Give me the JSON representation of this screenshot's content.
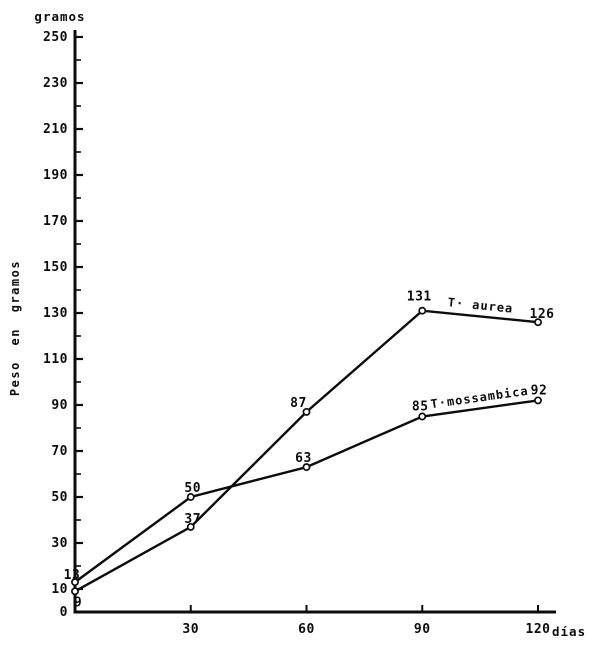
{
  "page": {
    "background": "#ffffff",
    "ink_color": "#0c0c0c"
  },
  "chart_data": {
    "type": "line",
    "title": "gramos",
    "ylabel": "Peso en gramos",
    "xlabel": "días",
    "x": [
      0,
      30,
      60,
      90,
      120
    ],
    "x_ticks": [
      30,
      60,
      90,
      120
    ],
    "y_ticks": [
      250,
      230,
      210,
      190,
      170,
      150,
      130,
      110,
      90,
      70,
      50,
      30,
      10,
      0
    ],
    "y_minor_ticks": [
      240,
      220,
      200,
      180,
      160,
      140,
      120,
      100,
      80,
      60,
      40,
      20
    ],
    "xlim": [
      0,
      122
    ],
    "ylim": [
      0,
      250
    ],
    "grid": false,
    "legend_position": "inline-labels-on-lines",
    "marker": "open-circle",
    "series": [
      {
        "name": "T· aurea",
        "values": [
          9,
          37,
          87,
          131,
          126
        ],
        "point_labels": [
          "9",
          "37",
          "87",
          "131",
          "126"
        ],
        "color": "#0c0c0c"
      },
      {
        "name": "T·mossambica",
        "values": [
          13,
          50,
          63,
          85,
          92
        ],
        "point_labels": [
          "13",
          "50",
          "63",
          "85",
          "92"
        ],
        "color": "#0c0c0c"
      }
    ]
  }
}
